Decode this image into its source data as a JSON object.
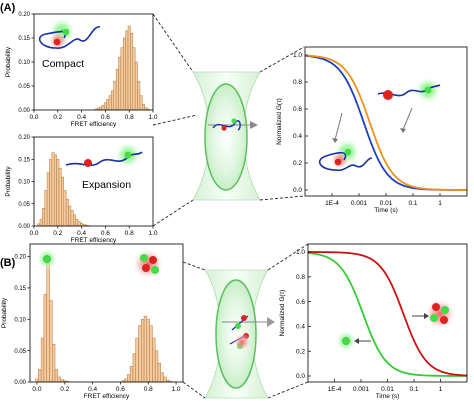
{
  "panels": {
    "a_label": "(A)",
    "b_label": "(B)"
  },
  "colors": {
    "bar_fill": "#f3c9a0",
    "bar_stroke": "#b77a3c",
    "blue": "#1f3fbf",
    "orange": "#f0901c",
    "red": "#cc1111",
    "green": "#33cc33",
    "donor": "#dd2222",
    "acceptor": "#44dd44",
    "chain": "#1a2fa0"
  },
  "chart_data": [
    {
      "id": "a-compact",
      "type": "bar",
      "annotation": "Compact",
      "xlabel": "FRET efficiency",
      "ylabel": "Probability",
      "xlim": [
        0,
        1
      ],
      "ylim": [
        0,
        0.2
      ],
      "xticks": [
        "0.0",
        "0.2",
        "0.4",
        "0.6",
        "0.8",
        "1.0"
      ],
      "yticks": [
        "0.00",
        "0.05",
        "0.10",
        "0.15",
        "0.20"
      ],
      "bin_width": 0.02,
      "x": [
        0.52,
        0.54,
        0.56,
        0.58,
        0.6,
        0.62,
        0.64,
        0.66,
        0.68,
        0.7,
        0.72,
        0.74,
        0.76,
        0.78,
        0.8,
        0.82,
        0.84,
        0.86,
        0.88,
        0.9,
        0.92,
        0.94,
        0.96
      ],
      "values": [
        0.002,
        0.004,
        0.006,
        0.01,
        0.015,
        0.022,
        0.03,
        0.04,
        0.06,
        0.085,
        0.11,
        0.13,
        0.15,
        0.165,
        0.175,
        0.16,
        0.13,
        0.1,
        0.06,
        0.03,
        0.012,
        0.005,
        0.002
      ]
    },
    {
      "id": "a-expansion",
      "type": "bar",
      "annotation": "Expansion",
      "xlabel": "FRET efficiency",
      "ylabel": "Probability",
      "xlim": [
        0,
        1
      ],
      "ylim": [
        0,
        0.2
      ],
      "xticks": [
        "0.0",
        "0.2",
        "0.4",
        "0.6",
        "0.8",
        "1.0"
      ],
      "yticks": [
        "0.00",
        "0.05",
        "0.10",
        "0.15",
        "0.20"
      ],
      "bin_width": 0.02,
      "x": [
        0.04,
        0.06,
        0.08,
        0.1,
        0.12,
        0.14,
        0.16,
        0.18,
        0.2,
        0.22,
        0.24,
        0.26,
        0.28,
        0.3,
        0.32,
        0.34,
        0.36,
        0.38,
        0.4,
        0.42,
        0.44,
        0.46
      ],
      "values": [
        0.005,
        0.015,
        0.04,
        0.08,
        0.12,
        0.15,
        0.165,
        0.16,
        0.15,
        0.13,
        0.11,
        0.08,
        0.06,
        0.045,
        0.035,
        0.025,
        0.015,
        0.01,
        0.006,
        0.004,
        0.002,
        0.001
      ]
    },
    {
      "id": "a-fcs",
      "type": "line",
      "xlabel": "Time (s)",
      "ylabel": "Normalized G(τ)",
      "xscale": "log",
      "xlim": [
        1e-05,
        10
      ],
      "ylim": [
        0,
        1
      ],
      "xticks": [
        "1E-4",
        "0.001",
        "0.01",
        "0.1",
        "1"
      ],
      "yticks": [
        "0.0",
        "0.2",
        "0.4",
        "0.6",
        "0.8",
        "1.0"
      ],
      "series": [
        {
          "color": "#1f3fbf",
          "tau": 0.0015
        },
        {
          "color": "#f0901c",
          "tau": 0.0025
        }
      ]
    },
    {
      "id": "b-hist",
      "type": "bar",
      "xlabel": "FRET efficiency",
      "ylabel": "Probability",
      "xlim": [
        -0.05,
        1.05
      ],
      "ylim": [
        0,
        0.22
      ],
      "xticks": [
        "0.0",
        "0.2",
        "0.4",
        "0.6",
        "0.8",
        "1.0"
      ],
      "yticks": [
        "0.00",
        "0.05",
        "0.10",
        "0.15",
        "0.20"
      ],
      "bin_width": 0.02,
      "x": [
        0.0,
        0.02,
        0.04,
        0.06,
        0.08,
        0.1,
        0.12,
        0.14,
        0.16,
        0.18,
        0.2,
        0.22,
        0.62,
        0.64,
        0.66,
        0.68,
        0.7,
        0.72,
        0.74,
        0.76,
        0.78,
        0.8,
        0.82,
        0.84,
        0.86,
        0.88,
        0.9,
        0.92,
        0.94,
        0.96
      ],
      "values": [
        0.005,
        0.02,
        0.07,
        0.14,
        0.19,
        0.13,
        0.06,
        0.02,
        0.008,
        0.004,
        0.002,
        0.001,
        0.002,
        0.005,
        0.012,
        0.025,
        0.045,
        0.07,
        0.09,
        0.1,
        0.105,
        0.1,
        0.09,
        0.07,
        0.05,
        0.03,
        0.015,
        0.008,
        0.003,
        0.001
      ]
    },
    {
      "id": "b-fcs",
      "type": "line",
      "xlabel": "Time (s)",
      "ylabel": "Normalized G(τ)",
      "xscale": "log",
      "xlim": [
        1e-05,
        10
      ],
      "ylim": [
        0,
        1
      ],
      "xticks": [
        "1E-4",
        "0.001",
        "0.01",
        "0.1",
        "1"
      ],
      "yticks": [
        "0.0",
        "0.2",
        "0.4",
        "0.6",
        "0.8",
        "1.0"
      ],
      "series": [
        {
          "color": "#33cc33",
          "tau": 0.0012
        },
        {
          "color": "#cc1111",
          "tau": 0.04
        }
      ]
    }
  ]
}
